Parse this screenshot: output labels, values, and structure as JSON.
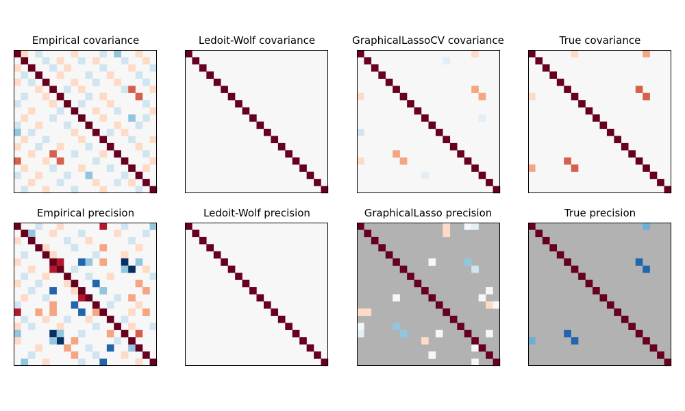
{
  "chart_data": [
    {
      "type": "heatmap",
      "title": "Empirical covariance",
      "size": 20,
      "background": "#f7f7f7",
      "diagonal_color": "#67001f",
      "cells": [
        [
          0,
          1,
          "#fddbc7"
        ],
        [
          0,
          3,
          "#d1e5f0"
        ],
        [
          0,
          8,
          "#fddbc7"
        ],
        [
          0,
          12,
          "#d1e5f0"
        ],
        [
          0,
          14,
          "#92c5de"
        ],
        [
          0,
          17,
          "#fddbc7"
        ],
        [
          1,
          4,
          "#d1e5f0"
        ],
        [
          1,
          6,
          "#fddbc7"
        ],
        [
          1,
          9,
          "#d1e5f0"
        ],
        [
          1,
          11,
          "#fddbc7"
        ],
        [
          1,
          15,
          "#d1e5f0"
        ],
        [
          1,
          18,
          "#fddbc7"
        ],
        [
          2,
          0,
          "#fddbc7"
        ],
        [
          2,
          5,
          "#d1e5f0"
        ],
        [
          2,
          7,
          "#fddbc7"
        ],
        [
          2,
          12,
          "#d1e5f0"
        ],
        [
          2,
          16,
          "#fddbc7"
        ],
        [
          2,
          19,
          "#d1e5f0"
        ],
        [
          3,
          1,
          "#d1e5f0"
        ],
        [
          3,
          6,
          "#fddbc7"
        ],
        [
          3,
          10,
          "#d1e5f0"
        ],
        [
          3,
          13,
          "#fddbc7"
        ],
        [
          3,
          17,
          "#d1e5f0"
        ],
        [
          4,
          0,
          "#fddbc7"
        ],
        [
          4,
          2,
          "#d1e5f0"
        ],
        [
          4,
          8,
          "#fddbc7"
        ],
        [
          4,
          11,
          "#d1e5f0"
        ],
        [
          4,
          14,
          "#fddbc7"
        ],
        [
          4,
          18,
          "#d1e5f0"
        ],
        [
          5,
          3,
          "#fddbc7"
        ],
        [
          5,
          7,
          "#d1e5f0"
        ],
        [
          5,
          9,
          "#fddbc7"
        ],
        [
          5,
          15,
          "#d1e5f0"
        ],
        [
          5,
          16,
          "#d6604d"
        ],
        [
          5,
          19,
          "#fddbc7"
        ],
        [
          6,
          1,
          "#d1e5f0"
        ],
        [
          6,
          4,
          "#fddbc7"
        ],
        [
          6,
          10,
          "#d1e5f0"
        ],
        [
          6,
          12,
          "#fddbc7"
        ],
        [
          6,
          17,
          "#d6604d"
        ],
        [
          7,
          0,
          "#d1e5f0"
        ],
        [
          7,
          5,
          "#fddbc7"
        ],
        [
          7,
          9,
          "#d1e5f0"
        ],
        [
          7,
          13,
          "#fddbc7"
        ],
        [
          7,
          18,
          "#d1e5f0"
        ],
        [
          8,
          2,
          "#fddbc7"
        ],
        [
          8,
          6,
          "#d1e5f0"
        ],
        [
          8,
          11,
          "#fddbc7"
        ],
        [
          8,
          14,
          "#d1e5f0"
        ],
        [
          8,
          19,
          "#fddbc7"
        ],
        [
          9,
          1,
          "#fddbc7"
        ],
        [
          9,
          5,
          "#d1e5f0"
        ],
        [
          9,
          12,
          "#fddbc7"
        ],
        [
          9,
          16,
          "#92c5de"
        ],
        [
          9,
          18,
          "#d1e5f0"
        ],
        [
          10,
          0,
          "#d1e5f0"
        ],
        [
          10,
          3,
          "#fddbc7"
        ],
        [
          10,
          7,
          "#d1e5f0"
        ],
        [
          10,
          14,
          "#fddbc7"
        ],
        [
          10,
          17,
          "#d1e5f0"
        ],
        [
          11,
          0,
          "#92c5de"
        ],
        [
          11,
          2,
          "#d1e5f0"
        ],
        [
          11,
          8,
          "#fddbc7"
        ],
        [
          11,
          13,
          "#d1e5f0"
        ],
        [
          11,
          15,
          "#fddbc7"
        ],
        [
          12,
          1,
          "#fddbc7"
        ],
        [
          12,
          4,
          "#d1e5f0"
        ],
        [
          12,
          9,
          "#fddbc7"
        ],
        [
          12,
          16,
          "#d1e5f0"
        ],
        [
          12,
          19,
          "#fddbc7"
        ],
        [
          13,
          0,
          "#fddbc7"
        ],
        [
          13,
          3,
          "#d1e5f0"
        ],
        [
          13,
          6,
          "#fddbc7"
        ],
        [
          13,
          10,
          "#d1e5f0"
        ],
        [
          13,
          17,
          "#fddbc7"
        ],
        [
          14,
          2,
          "#fddbc7"
        ],
        [
          14,
          5,
          "#d6604d"
        ],
        [
          14,
          8,
          "#d1e5f0"
        ],
        [
          14,
          12,
          "#fddbc7"
        ],
        [
          14,
          18,
          "#d1e5f0"
        ],
        [
          15,
          0,
          "#d6604d"
        ],
        [
          15,
          4,
          "#fddbc7"
        ],
        [
          15,
          6,
          "#d6604d"
        ],
        [
          15,
          11,
          "#d1e5f0"
        ],
        [
          15,
          19,
          "#fddbc7"
        ],
        [
          16,
          1,
          "#fddbc7"
        ],
        [
          16,
          5,
          "#d1e5f0"
        ],
        [
          16,
          9,
          "#fddbc7"
        ],
        [
          16,
          13,
          "#d1e5f0"
        ],
        [
          16,
          18,
          "#fddbc7"
        ],
        [
          17,
          0,
          "#d1e5f0"
        ],
        [
          17,
          3,
          "#fddbc7"
        ],
        [
          17,
          7,
          "#d1e5f0"
        ],
        [
          17,
          10,
          "#92c5de"
        ],
        [
          17,
          15,
          "#d1e5f0"
        ],
        [
          18,
          2,
          "#fddbc7"
        ],
        [
          18,
          6,
          "#d1e5f0"
        ],
        [
          18,
          11,
          "#fddbc7"
        ],
        [
          18,
          14,
          "#d1e5f0"
        ],
        [
          18,
          16,
          "#fddbc7"
        ],
        [
          19,
          1,
          "#d1e5f0"
        ],
        [
          19,
          4,
          "#fddbc7"
        ],
        [
          19,
          8,
          "#d1e5f0"
        ],
        [
          19,
          12,
          "#fddbc7"
        ],
        [
          19,
          17,
          "#d1e5f0"
        ]
      ]
    },
    {
      "type": "heatmap",
      "title": "Ledoit-Wolf covariance",
      "size": 20,
      "background": "#f7f7f7",
      "diagonal_color": "#67001f",
      "cells": []
    },
    {
      "type": "heatmap",
      "title": "GraphicalLassoCV covariance",
      "size": 20,
      "background": "#f7f7f7",
      "diagonal_color": "#67001f",
      "cells": [
        [
          0,
          16,
          "#fddbc7"
        ],
        [
          1,
          12,
          "#e3eef5"
        ],
        [
          5,
          16,
          "#f4a582"
        ],
        [
          6,
          17,
          "#f4a582"
        ],
        [
          6,
          0,
          "#fddbc7"
        ],
        [
          11,
          0,
          "#d1e5f0"
        ],
        [
          15,
          0,
          "#fddbc7"
        ],
        [
          14,
          5,
          "#f4a582"
        ],
        [
          15,
          6,
          "#f4a582"
        ],
        [
          17,
          9,
          "#e3eef5"
        ],
        [
          9,
          17,
          "#e3eef5"
        ]
      ]
    },
    {
      "type": "heatmap",
      "title": "True covariance",
      "size": 20,
      "background": "#f7f7f7",
      "diagonal_color": "#67001f",
      "cells": [
        [
          0,
          6,
          "#fddbc7"
        ],
        [
          0,
          16,
          "#f4a582"
        ],
        [
          5,
          15,
          "#d6604d"
        ],
        [
          6,
          16,
          "#d6604d"
        ],
        [
          6,
          0,
          "#fddbc7"
        ],
        [
          16,
          0,
          "#f4a582"
        ],
        [
          15,
          5,
          "#d6604d"
        ],
        [
          16,
          6,
          "#d6604d"
        ]
      ]
    },
    {
      "type": "heatmap",
      "title": "Empirical precision",
      "size": 20,
      "background": "#f7f7f7",
      "diagonal_color": "#67001f",
      "cells": [
        [
          0,
          3,
          "#d1e5f0"
        ],
        [
          0,
          6,
          "#fddbc7"
        ],
        [
          0,
          12,
          "#b2182b"
        ],
        [
          0,
          15,
          "#d1e5f0"
        ],
        [
          0,
          19,
          "#92c5de"
        ],
        [
          1,
          2,
          "#92c5de"
        ],
        [
          1,
          5,
          "#fddbc7"
        ],
        [
          1,
          9,
          "#d1e5f0"
        ],
        [
          1,
          14,
          "#fddbc7"
        ],
        [
          1,
          18,
          "#d1e5f0"
        ],
        [
          2,
          0,
          "#fddbc7"
        ],
        [
          2,
          7,
          "#d1e5f0"
        ],
        [
          2,
          10,
          "#fddbc7"
        ],
        [
          2,
          16,
          "#d1e5f0"
        ],
        [
          3,
          4,
          "#fddbc7"
        ],
        [
          3,
          8,
          "#d1e5f0"
        ],
        [
          3,
          12,
          "#f4a582"
        ],
        [
          3,
          17,
          "#fddbc7"
        ],
        [
          4,
          1,
          "#d1e5f0"
        ],
        [
          4,
          5,
          "#fddbc7"
        ],
        [
          4,
          11,
          "#d1e5f0"
        ],
        [
          4,
          15,
          "#fddbc7"
        ],
        [
          5,
          0,
          "#fddbc7"
        ],
        [
          5,
          6,
          "#b2182b"
        ],
        [
          5,
          9,
          "#2166ac"
        ],
        [
          5,
          10,
          "#92c5de"
        ],
        [
          5,
          12,
          "#f4a582"
        ],
        [
          5,
          15,
          "#053061"
        ],
        [
          5,
          17,
          "#92c5de"
        ],
        [
          6,
          2,
          "#fddbc7"
        ],
        [
          6,
          5,
          "#b2182b"
        ],
        [
          6,
          8,
          "#d1e5f0"
        ],
        [
          6,
          15,
          "#92c5de"
        ],
        [
          6,
          16,
          "#053061"
        ],
        [
          6,
          18,
          "#fddbc7"
        ],
        [
          7,
          1,
          "#d1e5f0"
        ],
        [
          7,
          4,
          "#fddbc7"
        ],
        [
          7,
          10,
          "#d1e5f0"
        ],
        [
          7,
          13,
          "#fddbc7"
        ],
        [
          7,
          19,
          "#d1e5f0"
        ],
        [
          8,
          0,
          "#fddbc7"
        ],
        [
          8,
          3,
          "#d1e5f0"
        ],
        [
          8,
          7,
          "#fddbc7"
        ],
        [
          8,
          11,
          "#2166ac"
        ],
        [
          8,
          17,
          "#f4a582"
        ],
        [
          9,
          2,
          "#d1e5f0"
        ],
        [
          9,
          5,
          "#2166ac"
        ],
        [
          9,
          8,
          "#fddbc7"
        ],
        [
          9,
          12,
          "#92c5de"
        ],
        [
          9,
          18,
          "#f4a582"
        ],
        [
          10,
          1,
          "#fddbc7"
        ],
        [
          10,
          4,
          "#d1e5f0"
        ],
        [
          10,
          9,
          "#b2182b"
        ],
        [
          10,
          14,
          "#d1e5f0"
        ],
        [
          10,
          16,
          "#f4a582"
        ],
        [
          11,
          0,
          "#d1e5f0"
        ],
        [
          11,
          5,
          "#f4a582"
        ],
        [
          11,
          8,
          "#2166ac"
        ],
        [
          11,
          13,
          "#d1e5f0"
        ],
        [
          11,
          17,
          "#fddbc7"
        ],
        [
          12,
          0,
          "#b2182b"
        ],
        [
          12,
          3,
          "#f4a582"
        ],
        [
          12,
          5,
          "#f4a582"
        ],
        [
          12,
          9,
          "#2166ac"
        ],
        [
          12,
          11,
          "#f4a582"
        ],
        [
          12,
          16,
          "#fddbc7"
        ],
        [
          12,
          18,
          "#f4a582"
        ],
        [
          13,
          1,
          "#d1e5f0"
        ],
        [
          13,
          4,
          "#fddbc7"
        ],
        [
          13,
          7,
          "#d1e5f0"
        ],
        [
          13,
          10,
          "#fddbc7"
        ],
        [
          13,
          15,
          "#d1e5f0"
        ],
        [
          14,
          0,
          "#fddbc7"
        ],
        [
          14,
          2,
          "#d1e5f0"
        ],
        [
          14,
          6,
          "#fddbc7"
        ],
        [
          14,
          11,
          "#d1e5f0"
        ],
        [
          14,
          16,
          "#fddbc7"
        ],
        [
          14,
          19,
          "#d1e5f0"
        ],
        [
          15,
          0,
          "#92c5de"
        ],
        [
          15,
          5,
          "#053061"
        ],
        [
          15,
          6,
          "#92c5de"
        ],
        [
          15,
          9,
          "#d1e5f0"
        ],
        [
          15,
          13,
          "#f4a582"
        ],
        [
          15,
          17,
          "#d6604d"
        ],
        [
          16,
          0,
          "#fddbc7"
        ],
        [
          16,
          6,
          "#053061"
        ],
        [
          16,
          5,
          "#92c5de"
        ],
        [
          16,
          8,
          "#f4a582"
        ],
        [
          16,
          14,
          "#d1e5f0"
        ],
        [
          17,
          3,
          "#fddbc7"
        ],
        [
          17,
          7,
          "#f4a582"
        ],
        [
          17,
          10,
          "#d1e5f0"
        ],
        [
          17,
          13,
          "#2166ac"
        ],
        [
          17,
          16,
          "#92c5de"
        ],
        [
          18,
          2,
          "#d1e5f0"
        ],
        [
          18,
          8,
          "#f4a582"
        ],
        [
          18,
          11,
          "#d1e5f0"
        ],
        [
          18,
          15,
          "#fddbc7"
        ],
        [
          19,
          1,
          "#92c5de"
        ],
        [
          19,
          4,
          "#fddbc7"
        ],
        [
          19,
          9,
          "#d1e5f0"
        ],
        [
          19,
          12,
          "#2166ac"
        ],
        [
          19,
          17,
          "#fddbc7"
        ]
      ]
    },
    {
      "type": "heatmap",
      "title": "Ledoit-Wolf precision",
      "size": 20,
      "background": "#f7f7f7",
      "diagonal_color": "#67001f",
      "cells": []
    },
    {
      "type": "heatmap",
      "title": "GraphicalLasso precision",
      "size": 20,
      "background": "#b2b2b2",
      "diagonal_color": "#67001f",
      "cells": [
        [
          0,
          12,
          "#fddbc7"
        ],
        [
          0,
          15,
          "#f7f7f7"
        ],
        [
          0,
          16,
          "#e3eef5"
        ],
        [
          1,
          12,
          "#fddbc7"
        ],
        [
          5,
          10,
          "#f7f7f7"
        ],
        [
          5,
          15,
          "#92c5de"
        ],
        [
          6,
          16,
          "#d1e5f0"
        ],
        [
          9,
          18,
          "#f7f7f7"
        ],
        [
          10,
          5,
          "#f7f7f7"
        ],
        [
          10,
          17,
          "#f7f7f7"
        ],
        [
          11,
          18,
          "#fddbc7"
        ],
        [
          11,
          19,
          "#f7f7f7"
        ],
        [
          12,
          0,
          "#fddbc7"
        ],
        [
          12,
          1,
          "#fddbc7"
        ],
        [
          12,
          12,
          "#67001f"
        ],
        [
          14,
          0,
          "#f7f7f7"
        ],
        [
          14,
          5,
          "#92c5de"
        ],
        [
          15,
          0,
          "#e3eef5"
        ],
        [
          15,
          6,
          "#92c5de"
        ],
        [
          15,
          11,
          "#f7f7f7"
        ],
        [
          15,
          18,
          "#f7f7f7"
        ],
        [
          16,
          9,
          "#fddbc7"
        ],
        [
          17,
          16,
          "#f7f7f7"
        ],
        [
          18,
          10,
          "#f7f7f7"
        ],
        [
          19,
          16,
          "#f7f7f7"
        ]
      ]
    },
    {
      "type": "heatmap",
      "title": "True precision",
      "size": 20,
      "background": "#b2b2b2",
      "diagonal_color": "#67001f",
      "cells": [
        [
          0,
          16,
          "#6baed6"
        ],
        [
          5,
          15,
          "#2166ac"
        ],
        [
          6,
          16,
          "#2166ac"
        ],
        [
          16,
          0,
          "#6baed6"
        ],
        [
          15,
          5,
          "#2166ac"
        ],
        [
          16,
          6,
          "#2166ac"
        ]
      ]
    }
  ]
}
